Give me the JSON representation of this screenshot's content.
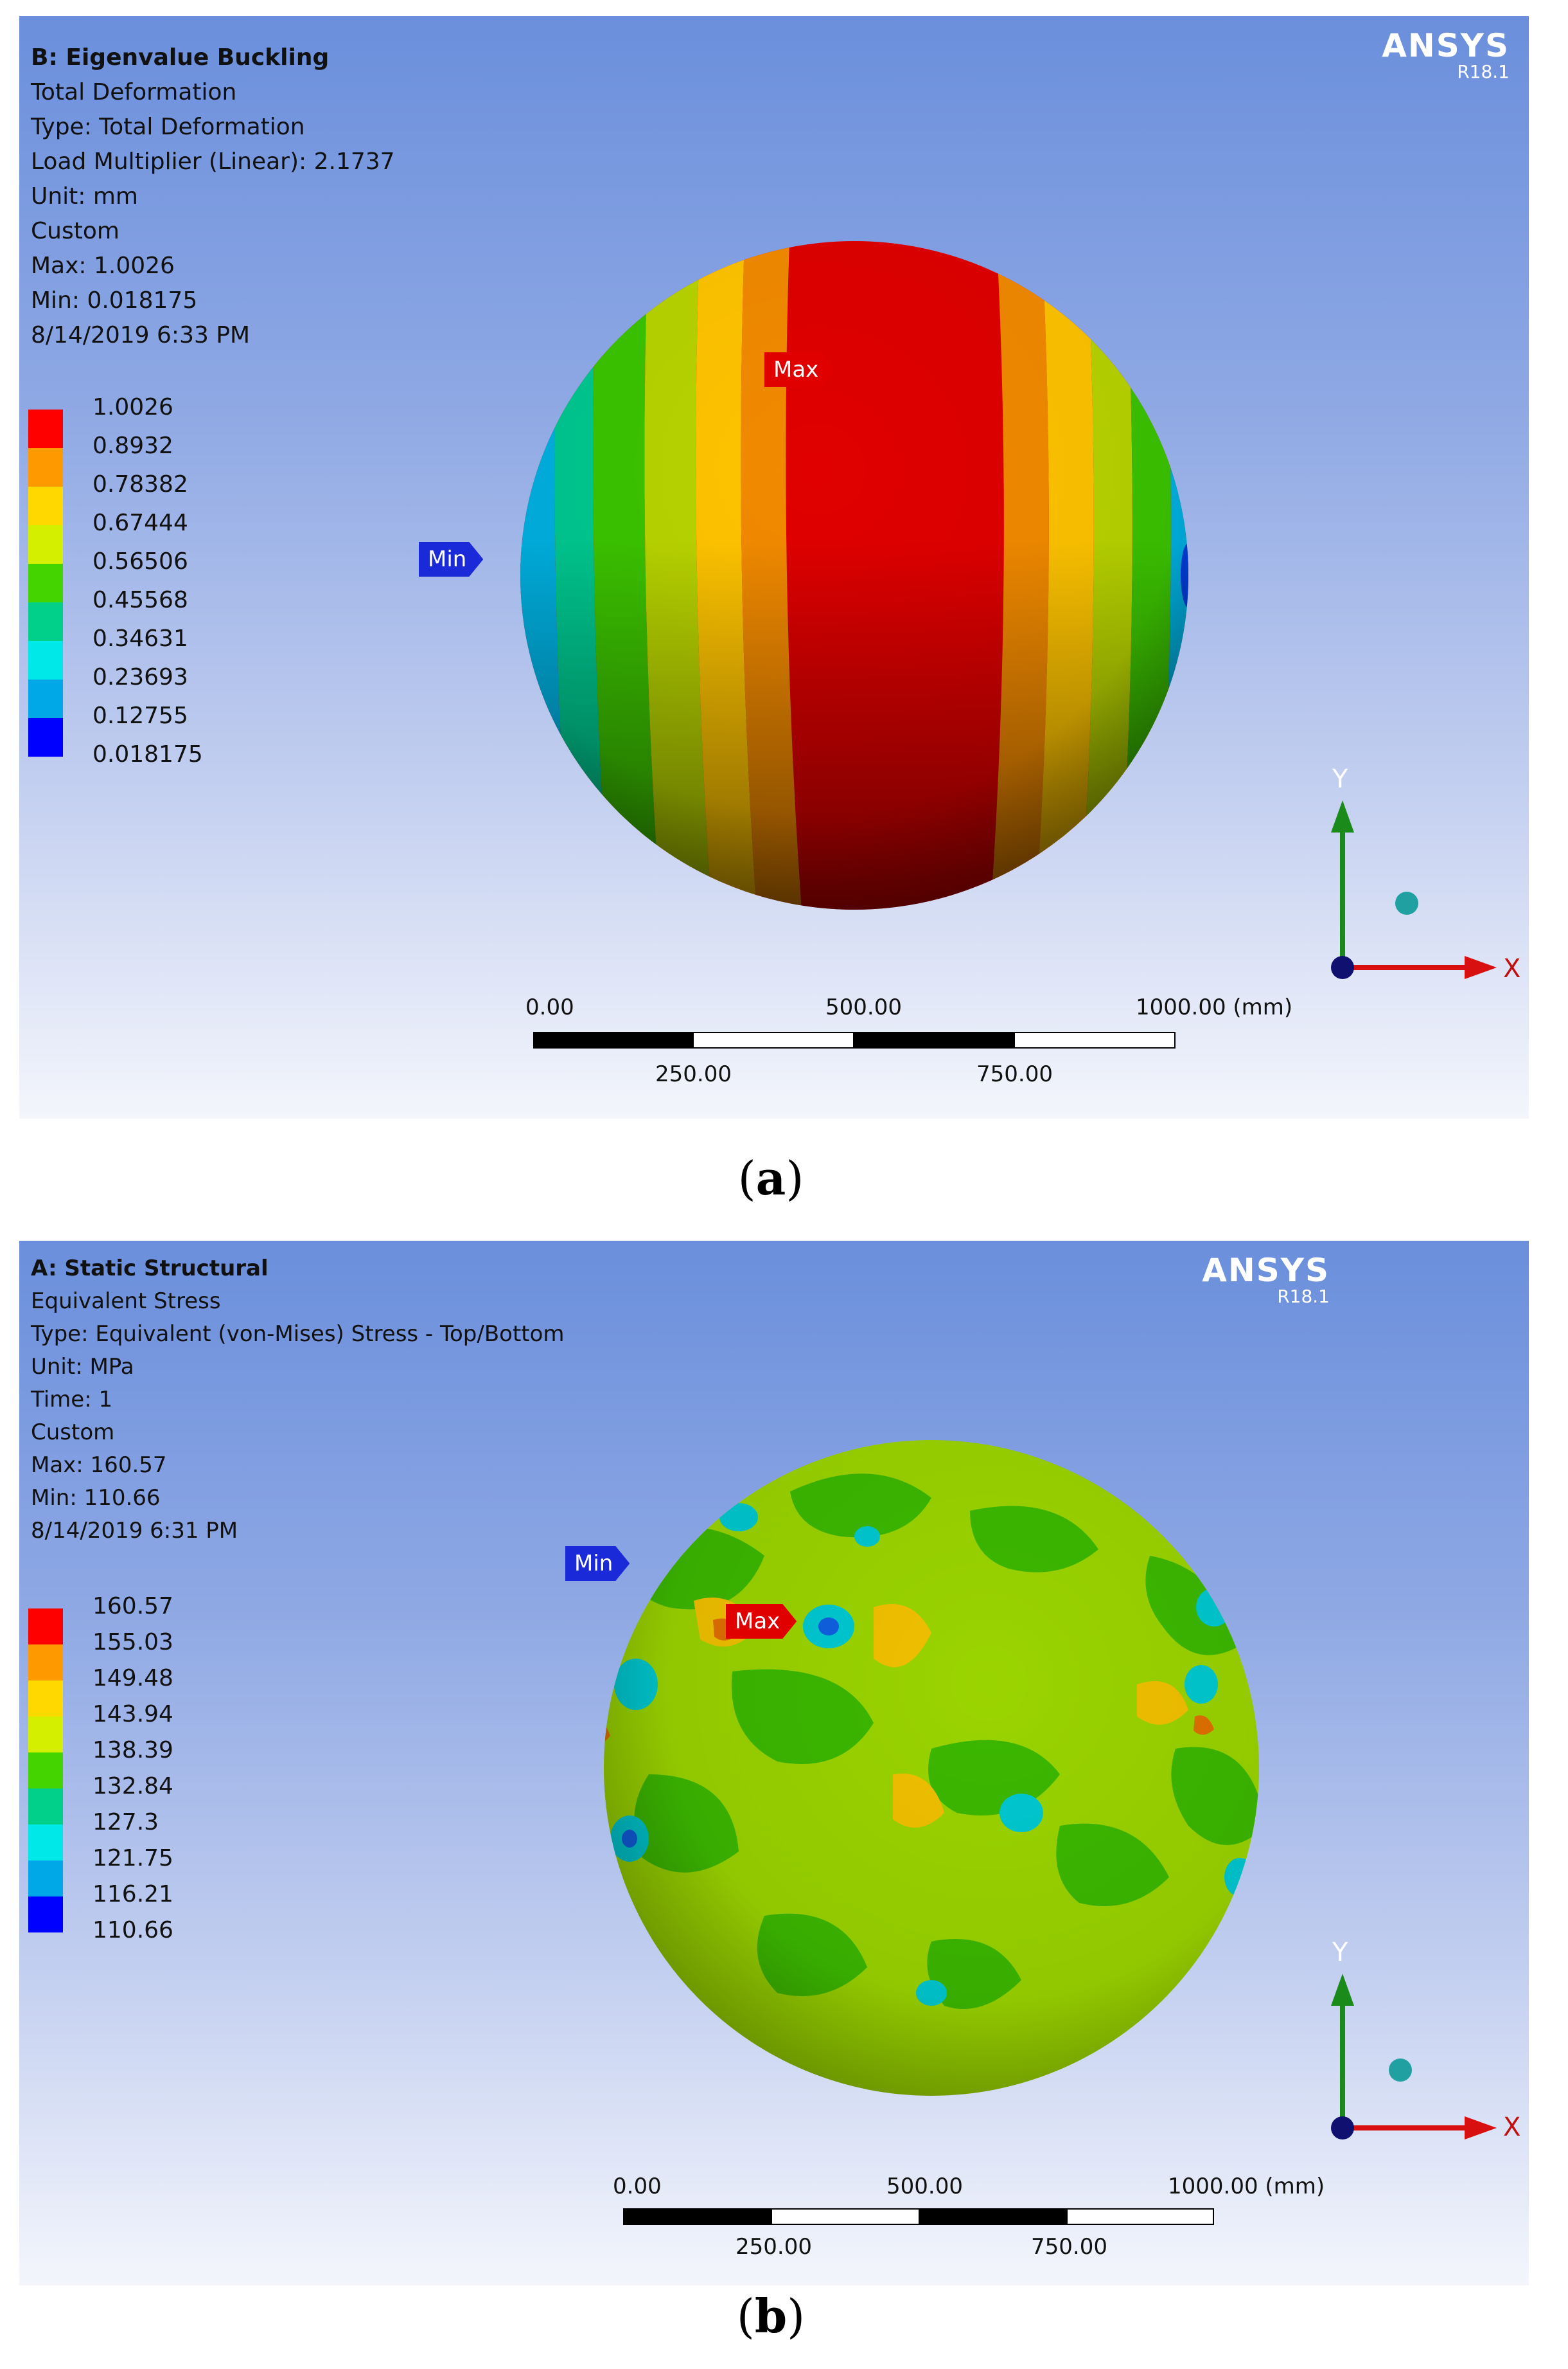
{
  "panel_a": {
    "caption": "(a)",
    "caption_letter": "a",
    "brand": {
      "name": "ANSYS",
      "version": "R18.1"
    },
    "info": {
      "title": "B: Eigenvalue Buckling",
      "result": "Total Deformation",
      "type": "Type: Total Deformation",
      "load": "Load Multiplier (Linear): 2.1737",
      "unit": "Unit: mm",
      "mode": "Custom",
      "max": "Max: 1.0026",
      "min": "Min: 0.018175",
      "timestamp": "8/14/2019 6:33 PM"
    },
    "legend": [
      "1.0026",
      "0.8932",
      "0.78382",
      "0.67444",
      "0.56506",
      "0.45568",
      "0.34631",
      "0.23693",
      "0.12755",
      "0.018175"
    ],
    "legend_colors": [
      "#ff0000",
      "#ff9900",
      "#ffd800",
      "#d4f000",
      "#44d400",
      "#00d08a",
      "#00e8e8",
      "#00a8e8",
      "#0000ff"
    ],
    "tags": {
      "max": "Max",
      "min": "Min"
    },
    "scale": {
      "l0": "0.00",
      "l250": "250.00",
      "l500": "500.00",
      "l750": "750.00",
      "l1000": "1000.00 (mm)"
    },
    "axes": {
      "x": "X",
      "y": "Y"
    }
  },
  "panel_b": {
    "caption": "(b)",
    "caption_letter": "b",
    "brand": {
      "name": "ANSYS",
      "version": "R18.1"
    },
    "info": {
      "title": "A: Static Structural",
      "result": "Equivalent Stress",
      "type": "Type: Equivalent (von-Mises) Stress - Top/Bottom",
      "unit": "Unit: MPa",
      "time": "Time: 1",
      "mode": "Custom",
      "max": "Max: 160.57",
      "min": "Min: 110.66",
      "timestamp": "8/14/2019 6:31 PM"
    },
    "legend": [
      "160.57",
      "155.03",
      "149.48",
      "143.94",
      "138.39",
      "132.84",
      "127.3",
      "121.75",
      "116.21",
      "110.66"
    ],
    "legend_colors": [
      "#ff0000",
      "#ff9900",
      "#ffd800",
      "#d4f000",
      "#44d400",
      "#00d08a",
      "#00e8e8",
      "#00a8e8",
      "#0000ff"
    ],
    "tags": {
      "max": "Max",
      "min": "Min"
    },
    "scale": {
      "l0": "0.00",
      "l250": "250.00",
      "l500": "500.00",
      "l750": "750.00",
      "l1000": "1000.00 (mm)"
    },
    "axes": {
      "x": "X",
      "y": "Y"
    }
  }
}
